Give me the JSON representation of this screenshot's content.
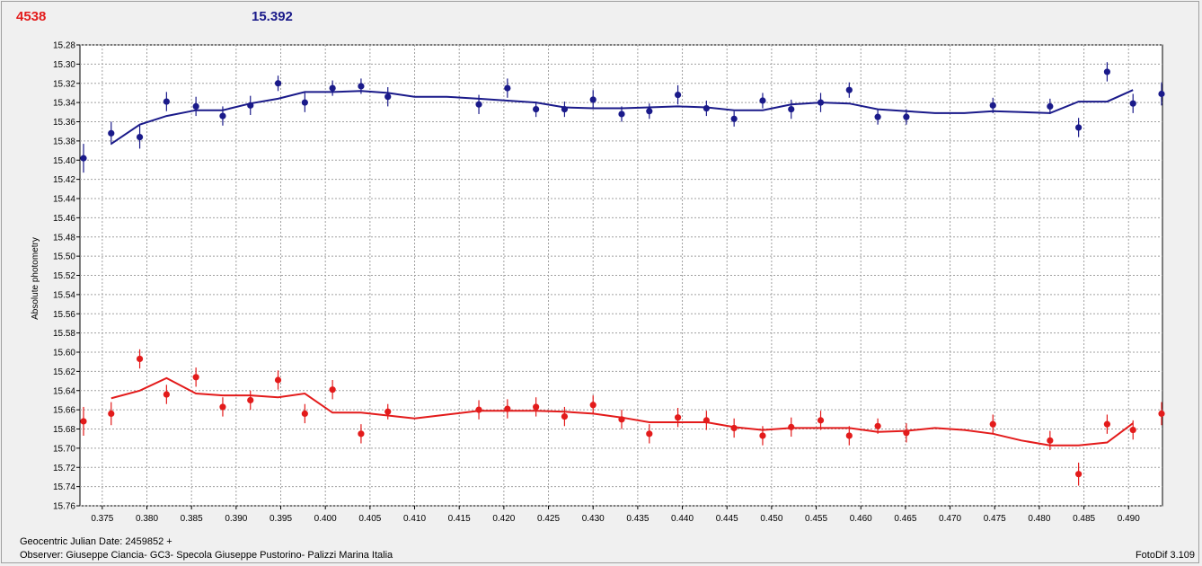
{
  "header": {
    "left_value": "4538",
    "right_value": "15.392"
  },
  "footer": {
    "julian_date": "Geocentric Julian Date: 2459852 +",
    "observer": "Observer: Giuseppe Ciancia- GC3- Specola Giuseppe Pustorino- Palizzi Marina Italia",
    "software": "FotoDif 3.109"
  },
  "colors": {
    "series_blue": "#1a1a8a",
    "series_red": "#e31b1b",
    "grid": "#a0a0a0",
    "plot_bg": "#ffffff"
  },
  "chart_data": {
    "type": "scatter",
    "ylabel": "Absolute photometry",
    "xlim": [
      0.3725,
      0.4938
    ],
    "ylim": [
      15.28,
      15.76
    ],
    "y_inverted": true,
    "x_ticks": [
      0.375,
      0.38,
      0.385,
      0.39,
      0.395,
      0.4,
      0.405,
      0.41,
      0.415,
      0.42,
      0.425,
      0.43,
      0.435,
      0.44,
      0.445,
      0.45,
      0.455,
      0.46,
      0.465,
      0.47,
      0.475,
      0.48,
      0.485,
      0.49
    ],
    "x_tick_labels": [
      "0.375",
      "0.380",
      "0.385",
      "0.390",
      "0.395",
      "0.400",
      "0.405",
      "0.410",
      "0.415",
      "0.420",
      "0.425",
      "0.430",
      "0.435",
      "0.440",
      "0.445",
      "0.450",
      "0.455",
      "0.460",
      "0.465",
      "0.470",
      "0.475",
      "0.480",
      "0.485",
      "0.490"
    ],
    "y_ticks": [
      15.28,
      15.3,
      15.32,
      15.34,
      15.36,
      15.38,
      15.4,
      15.42,
      15.44,
      15.46,
      15.48,
      15.5,
      15.52,
      15.54,
      15.56,
      15.58,
      15.6,
      15.62,
      15.64,
      15.66,
      15.68,
      15.7,
      15.72,
      15.74,
      15.76
    ],
    "y_tick_labels": [
      "15.28",
      "15.30",
      "15.32",
      "15.34",
      "15.36",
      "15.38",
      "15.40",
      "15.42",
      "15.44",
      "15.46",
      "15.48",
      "15.50",
      "15.52",
      "15.54",
      "15.56",
      "15.58",
      "15.60",
      "15.62",
      "15.64",
      "15.66",
      "15.68",
      "15.70",
      "15.72",
      "15.74",
      "15.76"
    ],
    "grid": true,
    "series": [
      {
        "color": "#1a1a8a",
        "points": [
          [
            0.3729,
            15.398,
            0.015
          ],
          [
            0.376,
            15.372,
            0.012
          ],
          [
            0.3792,
            15.376,
            0.012
          ],
          [
            0.3822,
            15.339,
            0.01
          ],
          [
            0.3855,
            15.344,
            0.01
          ],
          [
            0.3885,
            15.354,
            0.01
          ],
          [
            0.3916,
            15.343,
            0.01
          ],
          [
            0.3947,
            15.32,
            0.008
          ],
          [
            0.3977,
            15.34,
            0.01
          ],
          [
            0.4008,
            15.325,
            0.008
          ],
          [
            0.404,
            15.323,
            0.008
          ],
          [
            0.407,
            15.334,
            0.01
          ],
          [
            0.4172,
            15.342,
            0.01
          ],
          [
            0.4204,
            15.325,
            0.01
          ],
          [
            0.4236,
            15.347,
            0.008
          ],
          [
            0.4268,
            15.347,
            0.008
          ],
          [
            0.43,
            15.337,
            0.01
          ],
          [
            0.4332,
            15.352,
            0.008
          ],
          [
            0.4363,
            15.349,
            0.008
          ],
          [
            0.4395,
            15.332,
            0.01
          ],
          [
            0.4427,
            15.346,
            0.008
          ],
          [
            0.4458,
            15.357,
            0.008
          ],
          [
            0.449,
            15.338,
            0.008
          ],
          [
            0.4522,
            15.347,
            0.01
          ],
          [
            0.4555,
            15.34,
            0.01
          ],
          [
            0.4587,
            15.327,
            0.008
          ],
          [
            0.4619,
            15.355,
            0.008
          ],
          [
            0.4651,
            15.355,
            0.008
          ],
          [
            0.4748,
            15.343,
            0.008
          ],
          [
            0.4812,
            15.344,
            0.008
          ],
          [
            0.4844,
            15.366,
            0.01
          ],
          [
            0.4876,
            15.308,
            0.01
          ],
          [
            0.4905,
            15.341,
            0.01
          ],
          [
            0.4937,
            15.331,
            0.012
          ]
        ],
        "line": [
          [
            0.376,
            15.383
          ],
          [
            0.3792,
            15.363
          ],
          [
            0.3822,
            15.354
          ],
          [
            0.3855,
            15.348
          ],
          [
            0.3885,
            15.348
          ],
          [
            0.3916,
            15.341
          ],
          [
            0.3947,
            15.336
          ],
          [
            0.3977,
            15.329
          ],
          [
            0.4008,
            15.329
          ],
          [
            0.404,
            15.328
          ],
          [
            0.407,
            15.33
          ],
          [
            0.41,
            15.334
          ],
          [
            0.4136,
            15.334
          ],
          [
            0.4172,
            15.336
          ],
          [
            0.4204,
            15.338
          ],
          [
            0.4236,
            15.34
          ],
          [
            0.4268,
            15.345
          ],
          [
            0.43,
            15.346
          ],
          [
            0.4332,
            15.346
          ],
          [
            0.4363,
            15.345
          ],
          [
            0.4395,
            15.344
          ],
          [
            0.4427,
            15.345
          ],
          [
            0.4458,
            15.348
          ],
          [
            0.449,
            15.348
          ],
          [
            0.4522,
            15.342
          ],
          [
            0.4555,
            15.34
          ],
          [
            0.4587,
            15.341
          ],
          [
            0.4619,
            15.347
          ],
          [
            0.4651,
            15.349
          ],
          [
            0.4683,
            15.351
          ],
          [
            0.4716,
            15.351
          ],
          [
            0.4748,
            15.349
          ],
          [
            0.478,
            15.35
          ],
          [
            0.4812,
            15.351
          ],
          [
            0.4844,
            15.339
          ],
          [
            0.4876,
            15.339
          ],
          [
            0.4905,
            15.327
          ]
        ]
      },
      {
        "color": "#e31b1b",
        "points": [
          [
            0.3729,
            15.672,
            0.015
          ],
          [
            0.376,
            15.664,
            0.012
          ],
          [
            0.3792,
            15.607,
            0.01
          ],
          [
            0.3822,
            15.644,
            0.01
          ],
          [
            0.3855,
            15.626,
            0.01
          ],
          [
            0.3885,
            15.657,
            0.01
          ],
          [
            0.3916,
            15.65,
            0.01
          ],
          [
            0.3947,
            15.629,
            0.01
          ],
          [
            0.3977,
            15.664,
            0.01
          ],
          [
            0.4008,
            15.639,
            0.01
          ],
          [
            0.404,
            15.685,
            0.01
          ],
          [
            0.407,
            15.662,
            0.008
          ],
          [
            0.4172,
            15.66,
            0.01
          ],
          [
            0.4204,
            15.659,
            0.01
          ],
          [
            0.4236,
            15.657,
            0.01
          ],
          [
            0.4268,
            15.667,
            0.01
          ],
          [
            0.43,
            15.655,
            0.01
          ],
          [
            0.4332,
            15.67,
            0.01
          ],
          [
            0.4363,
            15.685,
            0.01
          ],
          [
            0.4395,
            15.668,
            0.01
          ],
          [
            0.4427,
            15.671,
            0.01
          ],
          [
            0.4458,
            15.679,
            0.01
          ],
          [
            0.449,
            15.687,
            0.01
          ],
          [
            0.4522,
            15.678,
            0.01
          ],
          [
            0.4555,
            15.671,
            0.01
          ],
          [
            0.4587,
            15.687,
            0.01
          ],
          [
            0.4619,
            15.677,
            0.008
          ],
          [
            0.4651,
            15.684,
            0.01
          ],
          [
            0.4748,
            15.675,
            0.01
          ],
          [
            0.4812,
            15.692,
            0.01
          ],
          [
            0.4844,
            15.727,
            0.012
          ],
          [
            0.4876,
            15.675,
            0.01
          ],
          [
            0.4905,
            15.681,
            0.01
          ],
          [
            0.4937,
            15.664,
            0.012
          ]
        ],
        "line": [
          [
            0.376,
            15.648
          ],
          [
            0.3792,
            15.64
          ],
          [
            0.3822,
            15.627
          ],
          [
            0.3855,
            15.643
          ],
          [
            0.3885,
            15.645
          ],
          [
            0.3916,
            15.645
          ],
          [
            0.3947,
            15.647
          ],
          [
            0.3977,
            15.643
          ],
          [
            0.4008,
            15.663
          ],
          [
            0.404,
            15.663
          ],
          [
            0.407,
            15.666
          ],
          [
            0.41,
            15.669
          ],
          [
            0.4136,
            15.665
          ],
          [
            0.4172,
            15.661
          ],
          [
            0.4204,
            15.661
          ],
          [
            0.4236,
            15.661
          ],
          [
            0.4268,
            15.662
          ],
          [
            0.43,
            15.664
          ],
          [
            0.4332,
            15.668
          ],
          [
            0.4363,
            15.673
          ],
          [
            0.4395,
            15.673
          ],
          [
            0.4427,
            15.673
          ],
          [
            0.4458,
            15.678
          ],
          [
            0.449,
            15.681
          ],
          [
            0.4522,
            15.679
          ],
          [
            0.4555,
            15.679
          ],
          [
            0.4587,
            15.679
          ],
          [
            0.4619,
            15.683
          ],
          [
            0.4651,
            15.682
          ],
          [
            0.4683,
            15.679
          ],
          [
            0.4716,
            15.681
          ],
          [
            0.4748,
            15.685
          ],
          [
            0.478,
            15.692
          ],
          [
            0.4812,
            15.697
          ],
          [
            0.4844,
            15.697
          ],
          [
            0.4876,
            15.694
          ],
          [
            0.4905,
            15.674
          ]
        ]
      }
    ]
  }
}
